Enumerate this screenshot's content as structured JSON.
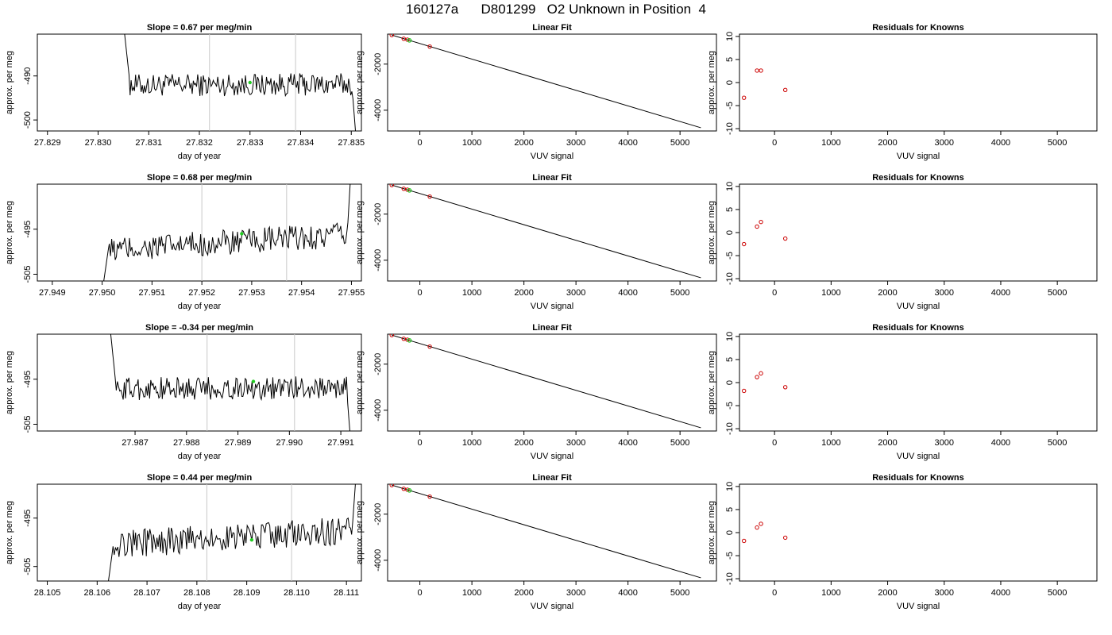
{
  "main_title": "160127a      D801299   O2 Unknown in Position  4",
  "chart_data": [
    {
      "type": "line",
      "title": "Slope =  0.67  per meg/min",
      "xlabel": "day of year",
      "ylabel": "approx. per meg",
      "xlim": [
        27.8288,
        27.8352
      ],
      "ylim": [
        -502.5,
        -480.5
      ],
      "xticks": [
        27.829,
        27.83,
        27.831,
        27.832,
        27.833,
        27.834,
        27.835
      ],
      "yticks": [
        -500,
        -490
      ],
      "vlines": [
        27.8322,
        27.8339
      ],
      "highlight_point": {
        "x": 27.833,
        "y": -491.5
      },
      "series": [
        {
          "values_desc": "noisy trace",
          "start": 27.8305,
          "end": 27.8351,
          "level": -492,
          "noise": 1.6,
          "slope": 0.2,
          "start_spike": -478,
          "end_spike": -505
        }
      ]
    },
    {
      "type": "scatter_line",
      "title": "Linear Fit",
      "xlabel": "VUV signal",
      "ylabel": "approx. per meg",
      "xlim": [
        -620,
        5700
      ],
      "ylim": [
        -4900,
        -700
      ],
      "xticks": [
        0,
        1000,
        2000,
        3000,
        4000,
        5000
      ],
      "yticks": [
        -4000,
        -2000
      ],
      "line": [
        {
          "x": -540,
          "y": -740
        },
        {
          "x": 5400,
          "y": -4760
        }
      ],
      "knowns": [
        {
          "x": -540,
          "y": -740
        },
        {
          "x": -310,
          "y": -900
        },
        {
          "x": -240,
          "y": -940
        },
        {
          "x": 190,
          "y": -1240
        }
      ],
      "unknown": {
        "x": -200,
        "y": -970
      }
    },
    {
      "type": "scatter",
      "title": "Residuals for Knowns",
      "xlabel": "VUV signal",
      "ylabel": "",
      "xlim": [
        -620,
        5700
      ],
      "ylim": [
        -10.5,
        10.5
      ],
      "xticks": [
        0,
        1000,
        2000,
        3000,
        4000,
        5000
      ],
      "yticks": [
        -10,
        -5,
        0,
        5,
        10
      ],
      "points": [
        {
          "x": -540,
          "y": -3.3
        },
        {
          "x": -310,
          "y": 2.6
        },
        {
          "x": -240,
          "y": 2.6
        },
        {
          "x": 190,
          "y": -1.6
        }
      ]
    },
    {
      "type": "line",
      "title": "Slope =  0.68  per meg/min",
      "xlabel": "day of year",
      "ylabel": "approx. per meg",
      "xlim": [
        27.9487,
        27.9552
      ],
      "ylim": [
        -506.5,
        -485
      ],
      "xticks": [
        27.949,
        27.95,
        27.951,
        27.952,
        27.953,
        27.954,
        27.955
      ],
      "yticks": [
        -505,
        -495
      ],
      "vlines": [
        27.952,
        27.9537
      ],
      "highlight_point": {
        "x": 27.9528,
        "y": -496
      },
      "series": [
        {
          "values_desc": "noisy rising trace",
          "start": 27.95,
          "end": 27.955,
          "level": -498,
          "noise": 1.8,
          "slope": 3.5,
          "start_spike": -509,
          "end_spike": -480
        }
      ]
    },
    {
      "type": "scatter_line",
      "title": "Linear Fit",
      "xlabel": "VUV signal",
      "ylabel": "approx. per meg",
      "xlim": [
        -620,
        5700
      ],
      "ylim": [
        -4900,
        -700
      ],
      "xticks": [
        0,
        1000,
        2000,
        3000,
        4000,
        5000
      ],
      "yticks": [
        -4000,
        -2000
      ],
      "line": [
        {
          "x": -540,
          "y": -740
        },
        {
          "x": 5400,
          "y": -4760
        }
      ],
      "knowns": [
        {
          "x": -540,
          "y": -740
        },
        {
          "x": -310,
          "y": -900
        },
        {
          "x": -240,
          "y": -940
        },
        {
          "x": 190,
          "y": -1240
        }
      ],
      "unknown": {
        "x": -200,
        "y": -970
      }
    },
    {
      "type": "scatter",
      "title": "Residuals for Knowns",
      "xlabel": "VUV signal",
      "ylabel": "",
      "xlim": [
        -620,
        5700
      ],
      "ylim": [
        -10.5,
        10.5
      ],
      "xticks": [
        0,
        1000,
        2000,
        3000,
        4000,
        5000
      ],
      "yticks": [
        -10,
        -5,
        0,
        5,
        10
      ],
      "points": [
        {
          "x": -540,
          "y": -2.5
        },
        {
          "x": -310,
          "y": 1.3
        },
        {
          "x": -240,
          "y": 2.3
        },
        {
          "x": 190,
          "y": -1.3
        }
      ]
    },
    {
      "type": "line",
      "title": "Slope =  -0.34  per meg/min",
      "xlabel": "day of year",
      "ylabel": "approx. per meg",
      "xlim": [
        27.9851,
        27.9914
      ],
      "ylim": [
        -506.5,
        -485
      ],
      "xticks": [
        27.987,
        27.988,
        27.989,
        27.99,
        27.991
      ],
      "yticks": [
        -505,
        -495
      ],
      "vlines": [
        27.9884,
        27.9901
      ],
      "highlight_point": {
        "x": 27.9893,
        "y": -495.5
      },
      "series": [
        {
          "values_desc": "noisy flat trace",
          "start": 27.9865,
          "end": 27.9912,
          "level": -497,
          "noise": 1.6,
          "slope": 0.3,
          "start_spike": -482,
          "end_spike": -510
        }
      ]
    },
    {
      "type": "scatter_line",
      "title": "Linear Fit",
      "xlabel": "VUV signal",
      "ylabel": "approx. per meg",
      "xlim": [
        -620,
        5700
      ],
      "ylim": [
        -4900,
        -700
      ],
      "xticks": [
        0,
        1000,
        2000,
        3000,
        4000,
        5000
      ],
      "yticks": [
        -4000,
        -2000
      ],
      "line": [
        {
          "x": -540,
          "y": -740
        },
        {
          "x": 5400,
          "y": -4760
        }
      ],
      "knowns": [
        {
          "x": -540,
          "y": -740
        },
        {
          "x": -310,
          "y": -900
        },
        {
          "x": -240,
          "y": -940
        },
        {
          "x": 190,
          "y": -1240
        }
      ],
      "unknown": {
        "x": -200,
        "y": -970
      }
    },
    {
      "type": "scatter",
      "title": "Residuals for Knowns",
      "xlabel": "VUV signal",
      "ylabel": "",
      "xlim": [
        -620,
        5700
      ],
      "ylim": [
        -10.5,
        10.5
      ],
      "xticks": [
        0,
        1000,
        2000,
        3000,
        4000,
        5000
      ],
      "yticks": [
        -10,
        -5,
        0,
        5,
        10
      ],
      "points": [
        {
          "x": -540,
          "y": -1.8
        },
        {
          "x": -310,
          "y": 1.2
        },
        {
          "x": -240,
          "y": 2.0
        },
        {
          "x": 190,
          "y": -1.0
        }
      ]
    },
    {
      "type": "line",
      "title": "Slope =  0.44  per meg/min",
      "xlabel": "day of year",
      "ylabel": "approx. per meg",
      "xlim": [
        28.1048,
        28.1113
      ],
      "ylim": [
        -508,
        -488
      ],
      "xticks": [
        28.105,
        28.106,
        28.107,
        28.108,
        28.109,
        28.11,
        28.111
      ],
      "yticks": [
        -505,
        -495
      ],
      "vlines": [
        28.1082,
        28.1099
      ],
      "highlight_point": {
        "x": 28.1091,
        "y": -499.5
      },
      "series": [
        {
          "values_desc": "noisy rising trace",
          "start": 28.1062,
          "end": 28.1112,
          "level": -499,
          "noise": 1.8,
          "slope": 3.0,
          "start_spike": -510,
          "end_spike": -485
        }
      ]
    },
    {
      "type": "scatter_line",
      "title": "Linear Fit",
      "xlabel": "VUV signal",
      "ylabel": "approx. per meg",
      "xlim": [
        -620,
        5700
      ],
      "ylim": [
        -4900,
        -700
      ],
      "xticks": [
        0,
        1000,
        2000,
        3000,
        4000,
        5000
      ],
      "yticks": [
        -4000,
        -2000
      ],
      "line": [
        {
          "x": -540,
          "y": -740
        },
        {
          "x": 5400,
          "y": -4760
        }
      ],
      "knowns": [
        {
          "x": -540,
          "y": -740
        },
        {
          "x": -310,
          "y": -900
        },
        {
          "x": -240,
          "y": -940
        },
        {
          "x": 190,
          "y": -1240
        }
      ],
      "unknown": {
        "x": -200,
        "y": -970
      }
    },
    {
      "type": "scatter",
      "title": "Residuals for Knowns",
      "xlabel": "VUV signal",
      "ylabel": "",
      "xlim": [
        -620,
        5700
      ],
      "ylim": [
        -10.5,
        10.5
      ],
      "xticks": [
        0,
        1000,
        2000,
        3000,
        4000,
        5000
      ],
      "yticks": [
        -10,
        -5,
        0,
        5,
        10
      ],
      "points": [
        {
          "x": -540,
          "y": -1.8
        },
        {
          "x": -310,
          "y": 1.1
        },
        {
          "x": -240,
          "y": 1.9
        },
        {
          "x": 190,
          "y": -1.1
        }
      ]
    }
  ],
  "colors": {
    "line": "#000000",
    "known_point": "#cc0000",
    "unknown_point": "#22cc22",
    "vline": "#c8c8c8"
  }
}
